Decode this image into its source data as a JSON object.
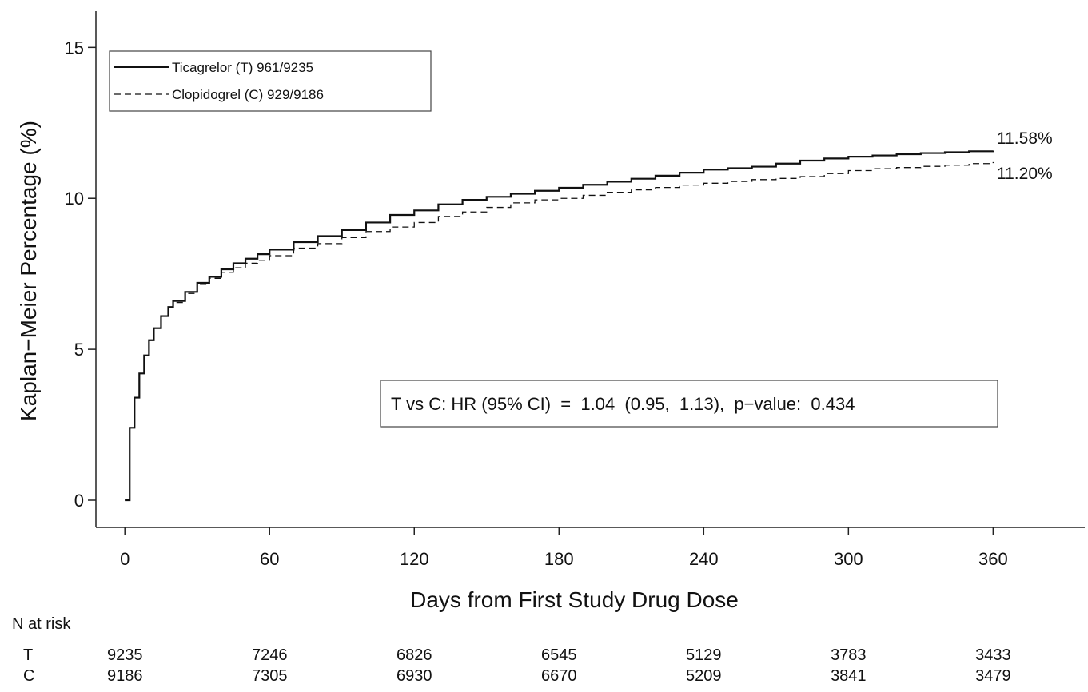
{
  "chart_data": {
    "type": "line",
    "title": "",
    "xlabel": "Days from First Study Drug Dose",
    "ylabel": "Kaplan−Meier Percentage (%)",
    "xlim": [
      -12,
      398
    ],
    "ylim": [
      -0.9,
      16.2
    ],
    "xticks": [
      0,
      60,
      120,
      180,
      240,
      300,
      360
    ],
    "yticks": [
      0,
      5,
      10,
      15
    ],
    "grid": false,
    "legend_position": "top-left",
    "series": [
      {
        "name": "Ticagrelor (T) 961/9235",
        "style": "solid",
        "color": "#111111",
        "x": [
          0,
          2,
          4,
          6,
          8,
          10,
          12,
          15,
          18,
          20,
          25,
          30,
          35,
          40,
          45,
          50,
          55,
          60,
          70,
          80,
          90,
          100,
          110,
          120,
          130,
          140,
          150,
          160,
          170,
          180,
          190,
          200,
          210,
          220,
          230,
          240,
          250,
          260,
          270,
          280,
          290,
          300,
          310,
          320,
          330,
          340,
          350,
          360
        ],
        "y": [
          0,
          2.4,
          3.4,
          4.2,
          4.8,
          5.3,
          5.7,
          6.1,
          6.4,
          6.6,
          6.9,
          7.2,
          7.4,
          7.65,
          7.85,
          8.0,
          8.15,
          8.3,
          8.55,
          8.75,
          8.95,
          9.2,
          9.45,
          9.6,
          9.8,
          9.95,
          10.05,
          10.15,
          10.25,
          10.35,
          10.45,
          10.55,
          10.65,
          10.75,
          10.85,
          10.95,
          11.0,
          11.05,
          11.15,
          11.25,
          11.32,
          11.38,
          11.42,
          11.46,
          11.5,
          11.53,
          11.56,
          11.58
        ]
      },
      {
        "name": "Clopidogrel (C) 929/9186",
        "style": "dashed",
        "color": "#111111",
        "x": [
          0,
          2,
          4,
          6,
          8,
          10,
          12,
          15,
          18,
          20,
          25,
          30,
          35,
          40,
          45,
          50,
          55,
          60,
          70,
          80,
          90,
          100,
          110,
          120,
          130,
          140,
          150,
          160,
          170,
          180,
          190,
          200,
          210,
          220,
          230,
          240,
          250,
          260,
          270,
          280,
          290,
          300,
          310,
          320,
          330,
          340,
          350,
          360
        ],
        "y": [
          0,
          2.4,
          3.4,
          4.2,
          4.8,
          5.3,
          5.7,
          6.1,
          6.4,
          6.55,
          6.85,
          7.15,
          7.35,
          7.55,
          7.7,
          7.85,
          7.95,
          8.1,
          8.35,
          8.5,
          8.7,
          8.9,
          9.05,
          9.2,
          9.4,
          9.55,
          9.7,
          9.85,
          9.95,
          10.0,
          10.1,
          10.2,
          10.28,
          10.36,
          10.44,
          10.5,
          10.56,
          10.62,
          10.66,
          10.72,
          10.82,
          10.92,
          10.98,
          11.02,
          11.06,
          11.1,
          11.15,
          11.2
        ]
      }
    ],
    "end_labels": [
      "11.58%",
      "11.20%"
    ],
    "annotation": "T vs C: HR (95% CI)  =  1.04  (0.95,  1.13),  p−value:  0.434",
    "risk_table": {
      "title": "N at risk",
      "rows": [
        {
          "label": "T",
          "values": [
            "9235",
            "7246",
            "6826",
            "6545",
            "5129",
            "3783",
            "3433"
          ]
        },
        {
          "label": "C",
          "values": [
            "9186",
            "7305",
            "6930",
            "6670",
            "5209",
            "3841",
            "3479"
          ]
        }
      ]
    }
  }
}
